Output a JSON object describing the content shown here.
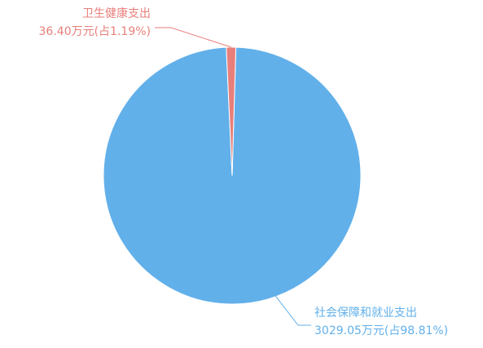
{
  "chart_data": {
    "type": "pie",
    "slices": [
      {
        "name": "社会保障和就业支出",
        "value_label": "3029.05万元(占98.81%)",
        "value": 3029.05,
        "percent": 98.81,
        "color": "#62b0ea"
      },
      {
        "name": "卫生健康支出",
        "value_label": "36.40万元(占1.19%)",
        "value": 36.4,
        "percent": 1.19,
        "color": "#e87f7a"
      }
    ]
  }
}
